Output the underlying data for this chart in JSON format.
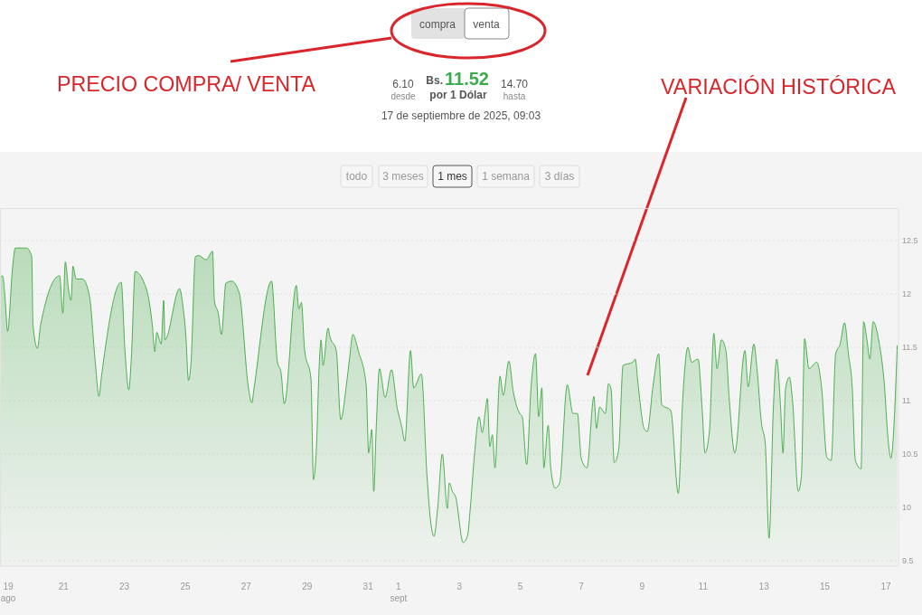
{
  "chart_data": {
    "type": "area",
    "color": "#4caf50",
    "annotations": [
      "compra",
      "venta",
      "6.10",
      "desde",
      "Bs.",
      "11.52",
      "por 1 Dólar",
      "14.70",
      "hasta",
      "17 de septiembre de 2025, 09:03",
      "todo",
      "3 meses",
      "1 mes",
      "1 semana",
      "3 días",
      "PRECIO COMPRA/ VENTA",
      "VARIACIÓN HISTÓRICA"
    ],
    "xlim": [
      "2025-08-18T22:00",
      "2025-09-17T10:00"
    ],
    "ylim": [
      9.45,
      12.8
    ],
    "yticks": [
      9.5,
      10,
      10.5,
      11,
      11.5,
      12,
      12.5
    ],
    "xticks": [
      {
        "value": "2025-08-19T00:00",
        "label": "19\nago"
      },
      {
        "value": "2025-08-21T00:00",
        "label": "21"
      },
      {
        "value": "2025-08-23T00:00",
        "label": "23"
      },
      {
        "value": "2025-08-25T00:00",
        "label": "25"
      },
      {
        "value": "2025-08-27T00:00",
        "label": "27"
      },
      {
        "value": "2025-08-29T00:00",
        "label": "29"
      },
      {
        "value": "2025-08-31T00:00",
        "label": "31"
      },
      {
        "value": "2025-09-01T00:00",
        "label": "1\nsept"
      },
      {
        "value": "2025-09-03T00:00",
        "label": "3"
      },
      {
        "value": "2025-09-05T00:00",
        "label": "5"
      },
      {
        "value": "2025-09-07T00:00",
        "label": "7"
      },
      {
        "value": "2025-09-09T00:00",
        "label": "9"
      },
      {
        "value": "2025-09-11T00:00",
        "label": "11"
      },
      {
        "value": "2025-09-13T00:00",
        "label": "13"
      },
      {
        "value": "2025-09-15T00:00",
        "label": "15"
      },
      {
        "value": "2025-09-17T00:00",
        "label": "17"
      }
    ],
    "grid": "y",
    "x": [
      "2025-08-18T22:00",
      "2025-08-19T00:00",
      "2025-08-19T02:00",
      "2025-08-19T04:00",
      "2025-08-19T08:00",
      "2025-08-19T10:00",
      "2025-08-19T19:00",
      "2025-08-19T23:00",
      "2025-08-20T00:00",
      "2025-08-20T03:30",
      "2025-08-20T06:00",
      "2025-08-20T21:00",
      "2025-08-20T23:30",
      "2025-08-21T01:30",
      "2025-08-21T04:00",
      "2025-08-21T06:00",
      "2025-08-21T07:30",
      "2025-08-21T10:00",
      "2025-08-21T15:00",
      "2025-08-21T20:30",
      "2025-08-22T01:00",
      "2025-08-22T04:00",
      "2025-08-22T06:00",
      "2025-08-22T21:30",
      "2025-08-23T00:30",
      "2025-08-23T03:30",
      "2025-08-23T05:30",
      "2025-08-23T08:30",
      "2025-08-23T17:30",
      "2025-08-23T22:00",
      "2025-08-24T00:00",
      "2025-08-24T01:30",
      "2025-08-24T05:00",
      "2025-08-24T07:00",
      "2025-08-24T08:00",
      "2025-08-24T19:30",
      "2025-08-24T22:00",
      "2025-08-25T00:30",
      "2025-08-25T02:30",
      "2025-08-25T04:30",
      "2025-08-25T08:00",
      "2025-08-25T10:30",
      "2025-08-25T16:30",
      "2025-08-25T21:30",
      "2025-08-25T23:00",
      "2025-08-26T02:00",
      "2025-08-26T04:30",
      "2025-08-26T08:00",
      "2025-08-26T12:30",
      "2025-08-26T18:30",
      "2025-08-27T02:00",
      "2025-08-27T04:30",
      "2025-08-27T06:00",
      "2025-08-27T20:00",
      "2025-08-28T00:30",
      "2025-08-28T03:30",
      "2025-08-28T06:00",
      "2025-08-28T15:30",
      "2025-08-28T17:30",
      "2025-08-28T19:30",
      "2025-08-28T22:00",
      "2025-08-29T03:00",
      "2025-08-29T05:00",
      "2025-08-29T07:30",
      "2025-08-29T09:30",
      "2025-08-29T11:00",
      "2025-08-29T12:30",
      "2025-08-29T16:30",
      "2025-08-29T18:00",
      "2025-08-29T23:00",
      "2025-08-30T02:30",
      "2025-08-30T07:00",
      "2025-08-30T09:30",
      "2025-08-30T12:00",
      "2025-08-30T16:30",
      "2025-08-30T22:30",
      "2025-08-31T00:30",
      "2025-08-31T03:00",
      "2025-08-31T04:30",
      "2025-08-31T06:30",
      "2025-08-31T09:00",
      "2025-08-31T13:30",
      "2025-08-31T18:30",
      "2025-08-31T23:00",
      "2025-09-01T02:30",
      "2025-09-01T05:00",
      "2025-09-01T09:30",
      "2025-09-01T12:00",
      "2025-09-01T18:00",
      "2025-09-01T22:30",
      "2025-09-02T01:30",
      "2025-09-02T04:00",
      "2025-09-02T07:00",
      "2025-09-02T10:30",
      "2025-09-02T14:30",
      "2025-09-02T16:00",
      "2025-09-02T18:30",
      "2025-09-02T21:00",
      "2025-09-03T03:00",
      "2025-09-03T06:30",
      "2025-09-03T08:30",
      "2025-09-03T12:00",
      "2025-09-03T15:30",
      "2025-09-03T18:00",
      "2025-09-03T20:30",
      "2025-09-03T22:00",
      "2025-09-04T00:00",
      "2025-09-04T02:00",
      "2025-09-04T04:00",
      "2025-09-04T08:00",
      "2025-09-04T10:30",
      "2025-09-04T15:00",
      "2025-09-04T18:30",
      "2025-09-04T23:30",
      "2025-09-05T01:30",
      "2025-09-05T05:00",
      "2025-09-05T08:30",
      "2025-09-05T12:00",
      "2025-09-05T14:30",
      "2025-09-05T17:00",
      "2025-09-05T18:30",
      "2025-09-05T22:00",
      "2025-09-06T00:00",
      "2025-09-06T03:30",
      "2025-09-06T07:00",
      "2025-09-06T13:00",
      "2025-09-06T17:30",
      "2025-09-06T21:00",
      "2025-09-07T00:00",
      "2025-09-07T04:30",
      "2025-09-07T10:00",
      "2025-09-07T12:00",
      "2025-09-07T14:30",
      "2025-09-07T19:00",
      "2025-09-07T21:30",
      "2025-09-07T23:30",
      "2025-09-08T02:00",
      "2025-09-08T05:30",
      "2025-09-08T09:00",
      "2025-09-08T16:30",
      "2025-09-08T18:30",
      "2025-09-08T21:00",
      "2025-09-09T01:30",
      "2025-09-09T04:00",
      "2025-09-09T08:30",
      "2025-09-09T13:00",
      "2025-09-09T15:30",
      "2025-09-09T22:30",
      "2025-09-10T04:30",
      "2025-09-10T08:00",
      "2025-09-10T12:00",
      "2025-09-10T15:00",
      "2025-09-10T20:00",
      "2025-09-10T23:30",
      "2025-09-11T01:30",
      "2025-09-11T05:00",
      "2025-09-11T08:30",
      "2025-09-11T11:00",
      "2025-09-11T14:30",
      "2025-09-11T18:00",
      "2025-09-11T20:30",
      "2025-09-12T01:00",
      "2025-09-12T09:00",
      "2025-09-12T11:30",
      "2025-09-12T16:00",
      "2025-09-12T18:30",
      "2025-09-12T22:00",
      "2025-09-13T01:00",
      "2025-09-13T04:00",
      "2025-09-13T07:30",
      "2025-09-13T10:00",
      "2025-09-13T13:00",
      "2025-09-13T15:00",
      "2025-09-13T17:00",
      "2025-09-13T20:00",
      "2025-09-13T22:30",
      "2025-09-14T03:00",
      "2025-09-14T05:30",
      "2025-09-14T08:00",
      "2025-09-14T11:30",
      "2025-09-14T17:30",
      "2025-09-14T21:30",
      "2025-09-15T01:30",
      "2025-09-15T05:00",
      "2025-09-15T08:30",
      "2025-09-15T12:00",
      "2025-09-15T15:30",
      "2025-09-15T18:30",
      "2025-09-15T21:30",
      "2025-09-16T00:00",
      "2025-09-16T04:30",
      "2025-09-16T06:30",
      "2025-09-16T09:00",
      "2025-09-16T11:30",
      "2025-09-16T14:00",
      "2025-09-16T18:30",
      "2025-09-16T23:00",
      "2025-09-17T01:30",
      "2025-09-17T04:00",
      "2025-09-17T09:03"
    ],
    "values": [
      12.15,
      12.17,
      11.96,
      11.65,
      12.26,
      12.43,
      12.43,
      12.35,
      11.71,
      11.49,
      11.71,
      12.17,
      11.82,
      12.3,
      12.04,
      11.94,
      12.26,
      12.14,
      12.14,
      11.98,
      11.37,
      11.04,
      11.23,
      12.11,
      11.46,
      11.1,
      11.4,
      12.21,
      12.04,
      11.71,
      11.46,
      11.64,
      11.53,
      11.94,
      11.57,
      12.05,
      11.9,
      11.6,
      11.19,
      11.35,
      12.35,
      12.36,
      12.32,
      12.4,
      11.93,
      11.82,
      11.62,
      12.1,
      12.12,
      12.01,
      11.1,
      10.98,
      11.1,
      12.12,
      11.37,
      11.26,
      10.97,
      12.08,
      11.86,
      11.92,
      11.48,
      11.21,
      10.26,
      10.6,
      11.32,
      11.57,
      11.33,
      11.68,
      11.6,
      11.47,
      10.82,
      11.15,
      11.4,
      11.62,
      11.46,
      11.15,
      10.51,
      10.73,
      10.15,
      10.76,
      11.3,
      11.03,
      11.29,
      10.93,
      10.76,
      10.62,
      11.47,
      11.12,
      11.25,
      10.29,
      9.85,
      9.73,
      10.01,
      10.5,
      9.99,
      10.23,
      10.15,
      10.1,
      9.67,
      9.74,
      9.98,
      10.51,
      10.85,
      10.7,
      10.91,
      11.02,
      10.57,
      10.68,
      10.37,
      11.23,
      11.05,
      11.37,
      11.08,
      10.88,
      10.85,
      10.4,
      11.13,
      11.44,
      10.85,
      11.12,
      10.37,
      10.77,
      10.37,
      10.18,
      10.23,
      11.15,
      10.88,
      10.88,
      10.46,
      10.37,
      11.04,
      10.74,
      10.94,
      10.88,
      11.16,
      11.11,
      10.42,
      10.54,
      11.33,
      11.36,
      11.39,
      11.13,
      10.74,
      10.71,
      11.13,
      11.44,
      10.96,
      10.91,
      10.13,
      11.02,
      11.5,
      11.36,
      11.39,
      10.88,
      10.51,
      10.71,
      11.63,
      11.3,
      11.57,
      11.47,
      11.04,
      10.51,
      11.47,
      11.13,
      11.53,
      11.3,
      10.79,
      10.6,
      9.71,
      10.96,
      11.39,
      10.96,
      10.51,
      11.11,
      11.22,
      11,
      10.15,
      10.29,
      11.58,
      11.3,
      11.36,
      11.11,
      10.47,
      10.44,
      11.44,
      11.53,
      11.73,
      11.44,
      11.13,
      10.44,
      10.36,
      11.74,
      11.58,
      11.39,
      11.74,
      11.56,
      11.13,
      10.68,
      10.46,
      11.52
    ]
  }
}
